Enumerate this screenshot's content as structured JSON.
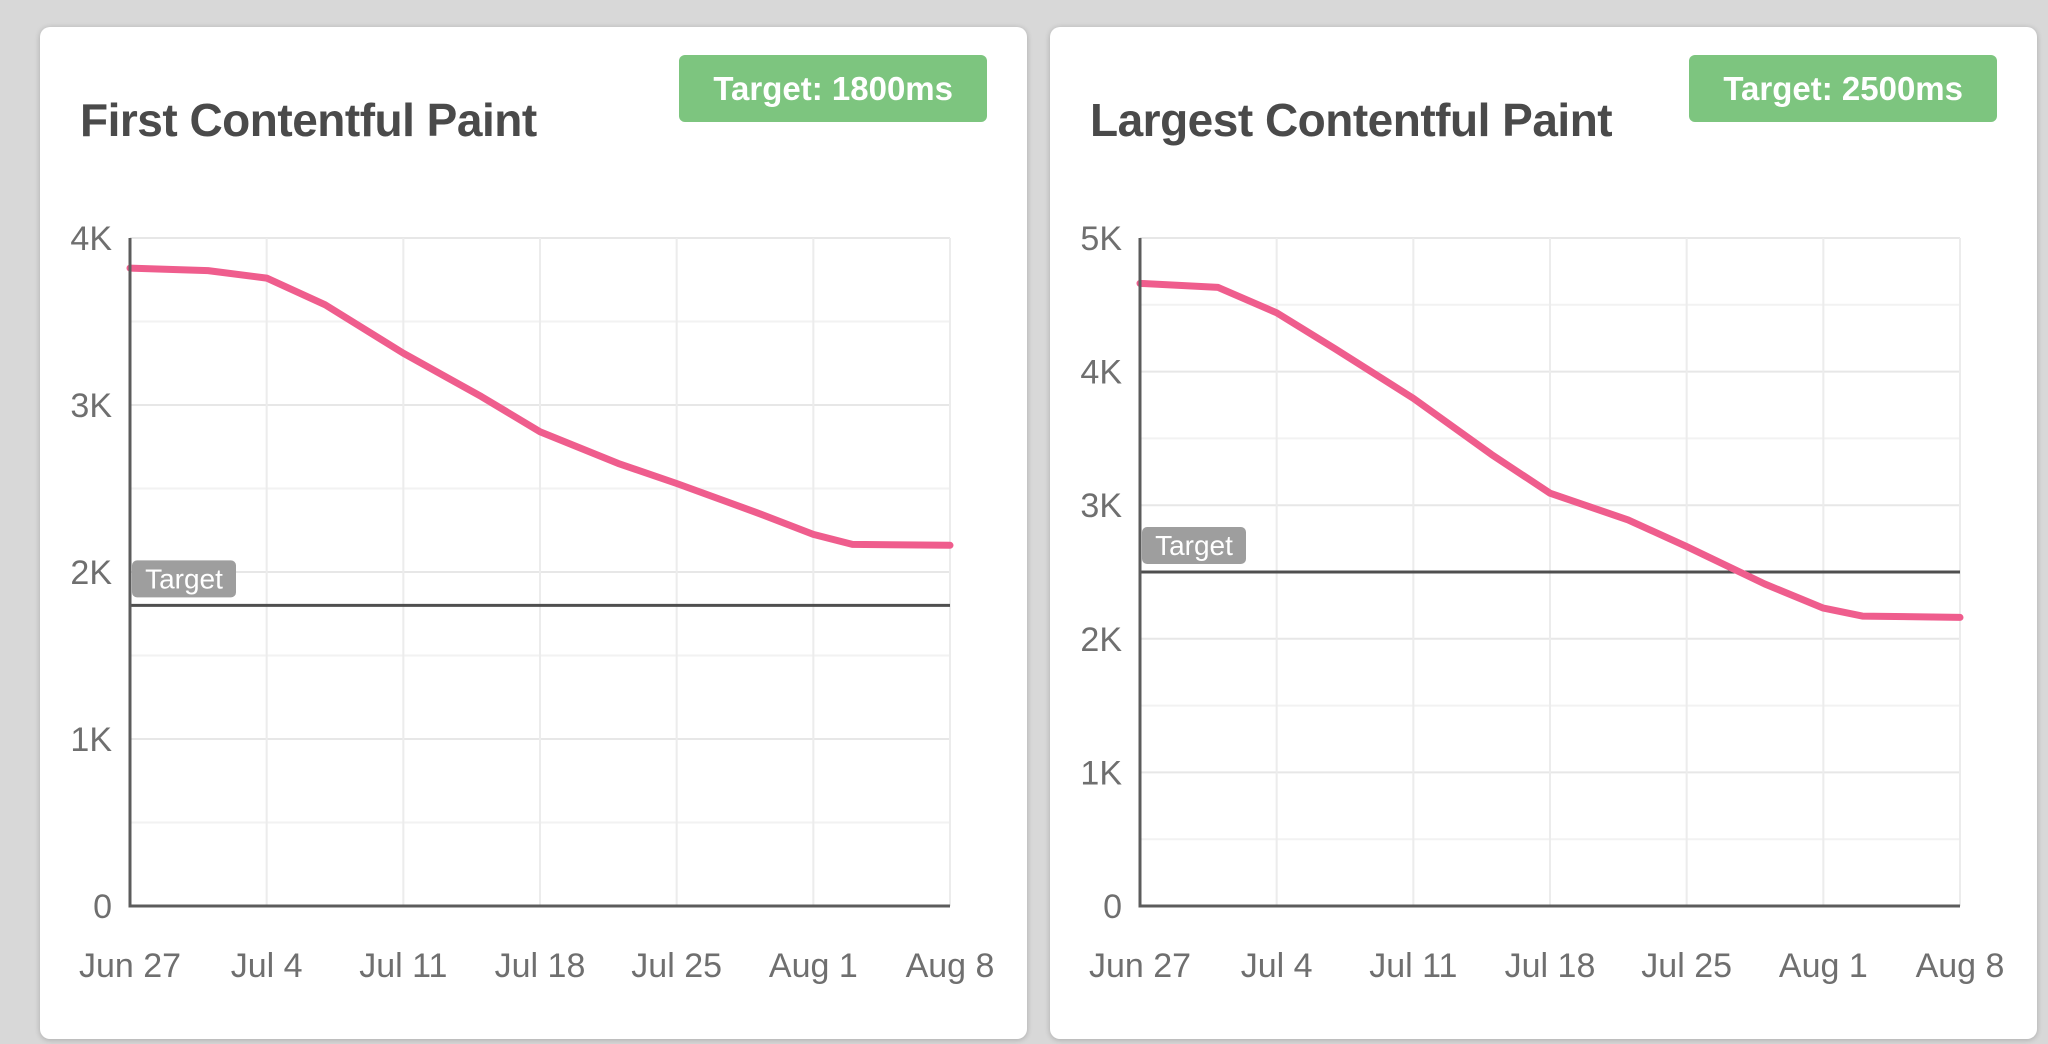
{
  "page": {
    "background": "#d8d8d8"
  },
  "colors": {
    "card_background": "#ffffff",
    "title_text": "#4a4a4a",
    "badge_background": "#7dc57f",
    "badge_text": "#ffffff",
    "line_pink": "#ef5d8d",
    "axis": "#5c5c5c",
    "tick_text": "#6f6f6f",
    "grid_major": "#e7e7e7",
    "grid_minor": "#f2f2f2",
    "grid_vertical": "#ececec",
    "target_line": "#4f4f4f",
    "target_label_background": "#9e9e9e",
    "target_label_text": "#ffffff"
  },
  "chart_data": [
    {
      "type": "line",
      "title": "First Contentful Paint",
      "badge_label": "Target: 1800ms",
      "target_label": "Target",
      "target_ms": 1800,
      "x": [
        "Jun 27",
        "Jul 4",
        "Jul 11",
        "Jul 18",
        "Jul 25",
        "Aug 1",
        "Aug 8"
      ],
      "weekly_values_ms": [
        3820,
        3760,
        3310,
        2840,
        2530,
        2225,
        2160
      ],
      "series": [
        {
          "name": "First Contentful Paint (ms)",
          "points_day_value": [
            [
              0,
              3820
            ],
            [
              4,
              3805
            ],
            [
              7,
              3760
            ],
            [
              10,
              3600
            ],
            [
              14,
              3310
            ],
            [
              18,
              3050
            ],
            [
              21,
              2840
            ],
            [
              25,
              2650
            ],
            [
              28,
              2530
            ],
            [
              32,
              2360
            ],
            [
              35,
              2225
            ],
            [
              37,
              2165
            ],
            [
              42,
              2160
            ]
          ]
        }
      ],
      "ylim": [
        0,
        4000
      ],
      "y_major_step": 1000,
      "y_minor_step": 500,
      "y_tick_labels": [
        "0",
        "1K",
        "2K",
        "3K",
        "4K"
      ],
      "grid": true,
      "legend": "none"
    },
    {
      "type": "line",
      "title": "Largest Contentful Paint",
      "badge_label": "Target: 2500ms",
      "target_label": "Target",
      "target_ms": 2500,
      "x": [
        "Jun 27",
        "Jul 4",
        "Jul 11",
        "Jul 18",
        "Jul 25",
        "Aug 1",
        "Aug 8"
      ],
      "weekly_values_ms": [
        4660,
        4440,
        3800,
        3090,
        2690,
        2230,
        2160
      ],
      "series": [
        {
          "name": "Largest Contentful Paint (ms)",
          "points_day_value": [
            [
              0,
              4660
            ],
            [
              4,
              4630
            ],
            [
              7,
              4440
            ],
            [
              10,
              4170
            ],
            [
              14,
              3800
            ],
            [
              18,
              3380
            ],
            [
              21,
              3090
            ],
            [
              25,
              2890
            ],
            [
              28,
              2690
            ],
            [
              32,
              2410
            ],
            [
              35,
              2230
            ],
            [
              37,
              2170
            ],
            [
              42,
              2160
            ]
          ]
        }
      ],
      "ylim": [
        0,
        5000
      ],
      "y_major_step": 1000,
      "y_minor_step": 500,
      "y_tick_labels": [
        "0",
        "1K",
        "2K",
        "3K",
        "4K",
        "5K"
      ],
      "grid": true,
      "legend": "none"
    }
  ]
}
